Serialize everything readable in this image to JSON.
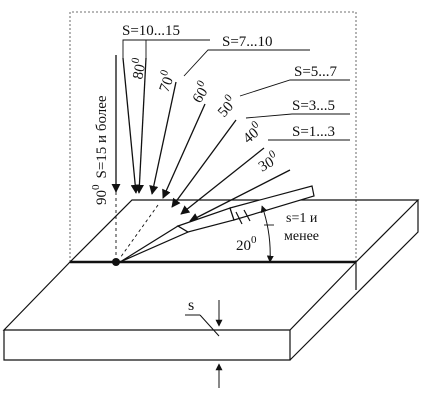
{
  "range_labels": {
    "s10_15": "S=10...15",
    "s7_10": "S=7...10",
    "s5_7": "S=5...7",
    "s3_5": "S=3...5",
    "s1_3": "S=1...3",
    "s15_more": "S=15 и более",
    "s1_less_line1": "s=1 и",
    "s1_less_line2": "менее"
  },
  "angles": {
    "a90": "90",
    "a80": "80",
    "a70": "70",
    "a60": "60",
    "a50": "50",
    "a40": "40",
    "a30": "30",
    "a20": "20"
  },
  "degree_mark": "0",
  "thickness_label": "s"
}
